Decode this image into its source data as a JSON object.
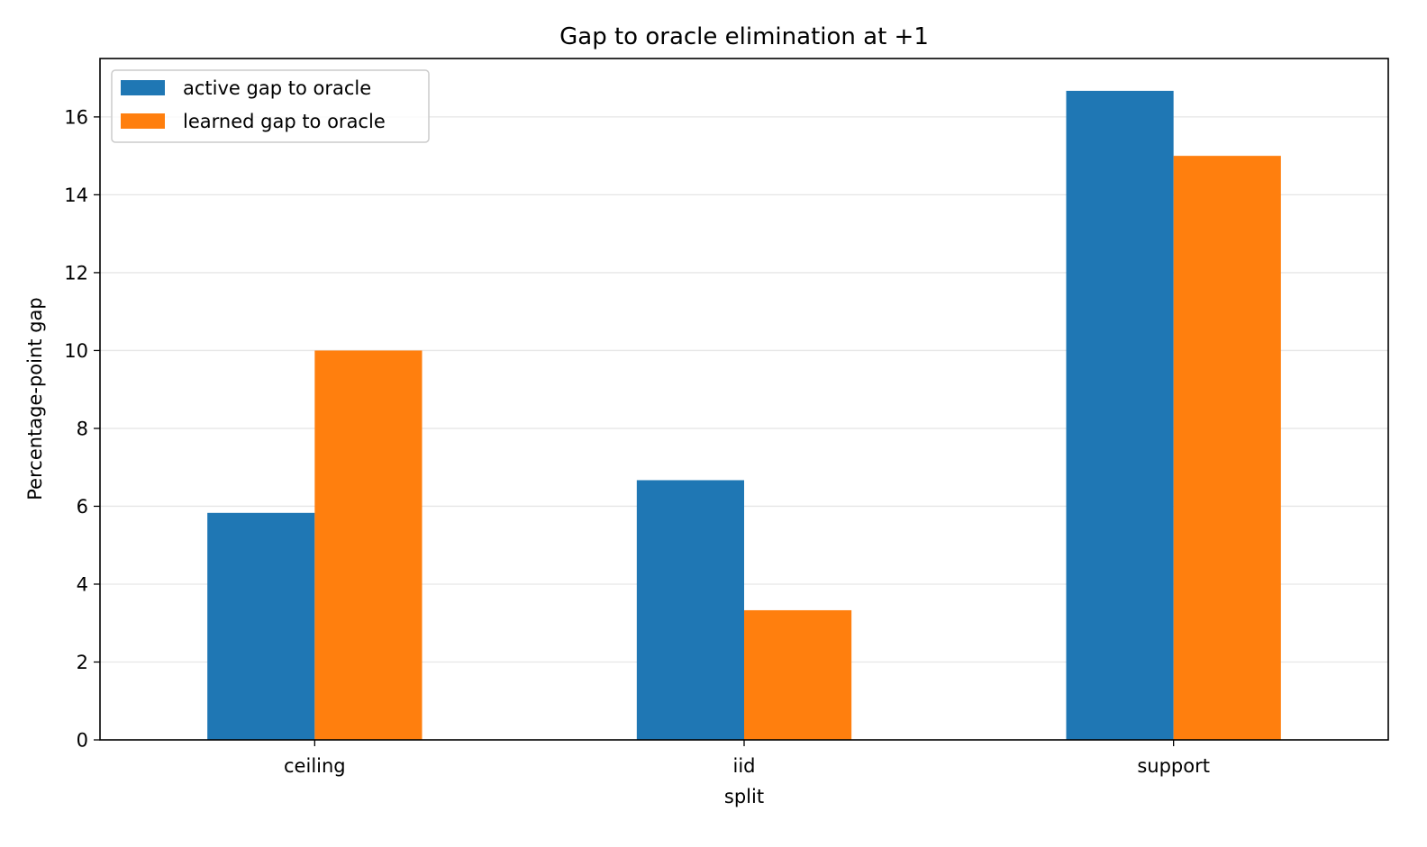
{
  "chart_data": {
    "type": "bar",
    "title": "Gap to oracle elimination at +1",
    "xlabel": "split",
    "ylabel": "Percentage-point gap",
    "categories": [
      "ceiling",
      "iid",
      "support"
    ],
    "series": [
      {
        "name": "active gap to oracle",
        "color": "#1f77b4",
        "values": [
          5.83,
          6.67,
          16.67
        ]
      },
      {
        "name": "learned gap to oracle",
        "color": "#ff7f0e",
        "values": [
          10.0,
          3.33,
          15.0
        ]
      }
    ],
    "ylim": [
      0,
      17.5
    ],
    "yticks": [
      0,
      2,
      4,
      6,
      8,
      10,
      12,
      14,
      16
    ],
    "grid": "y",
    "legend_position": "top-left"
  }
}
